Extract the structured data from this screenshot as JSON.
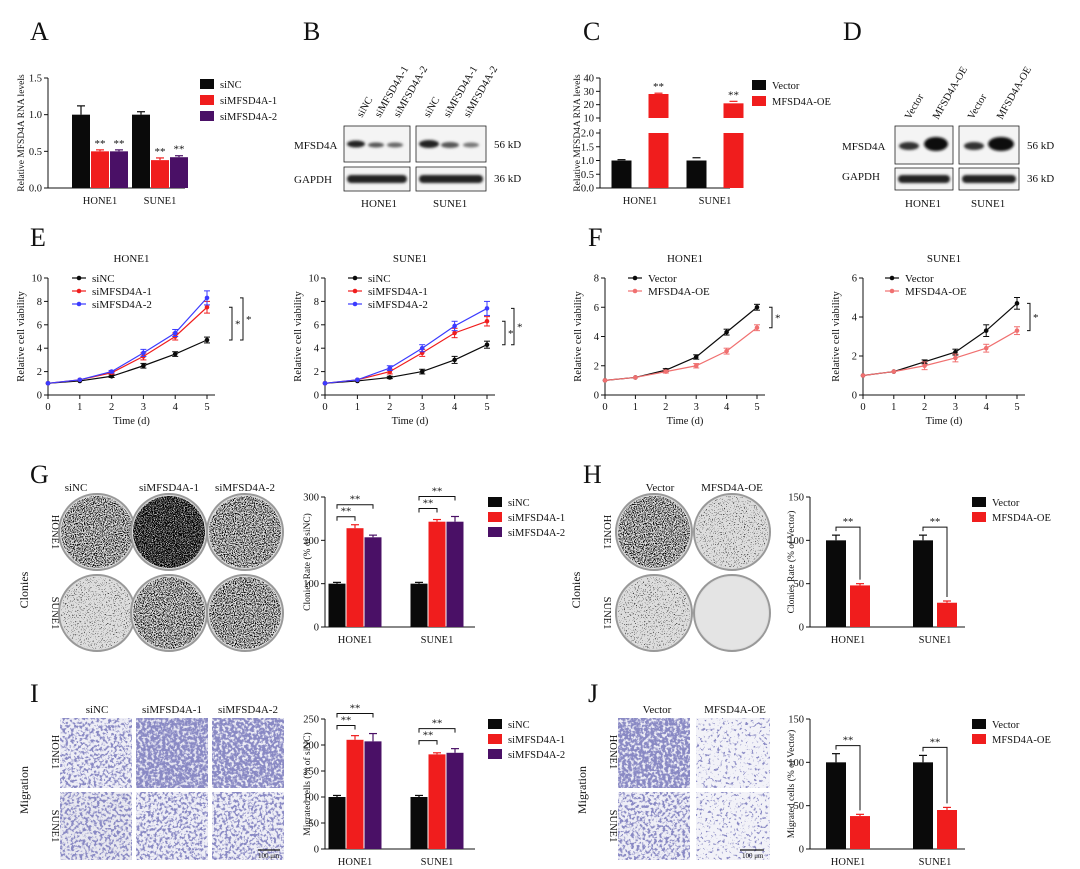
{
  "colors": {
    "black": "#0a0a0a",
    "red": "#f01d1d",
    "purple": "#4a1066",
    "blue": "#3b3bff",
    "pink": "#f07070"
  },
  "panel_letters": [
    "A",
    "B",
    "C",
    "D",
    "E",
    "F",
    "G",
    "H",
    "I",
    "J"
  ],
  "wb": {
    "B": {
      "lanes": [
        "siNC",
        "siMFSD4A-1",
        "siMFSD4A-2",
        "siNC",
        "siMFSD4A-1",
        "siMFSD4A-2"
      ],
      "proteins": [
        "MFSD4A",
        "GAPDH"
      ],
      "kd": [
        "56 kD",
        "36 kD"
      ],
      "cells": [
        "HONE1",
        "SUNE1"
      ]
    },
    "D": {
      "lanes": [
        "Vector",
        "MFSD4A-OE",
        "Vector",
        "MFSD4A-OE"
      ],
      "proteins": [
        "MFSD4A",
        "GAPDH"
      ],
      "kd": [
        "56 kD",
        "36 kD"
      ],
      "cells": [
        "HONE1",
        "SUNE1"
      ]
    }
  },
  "images": {
    "G": {
      "cols": [
        "siNC",
        "siMFSD4A-1",
        "siMFSD4A-2"
      ],
      "rows": [
        "HONE1",
        "SUNE1"
      ],
      "side": "Clonies"
    },
    "H": {
      "cols": [
        "Vector",
        "MFSD4A-OE"
      ],
      "rows": [
        "HONE1",
        "SUNE1"
      ],
      "side": "Clonies"
    },
    "I": {
      "cols": [
        "siNC",
        "siMFSD4A-1",
        "siMFSD4A-2"
      ],
      "rows": [
        "HONE1",
        "SUNE1"
      ],
      "side": "Migration",
      "scale": "100 μm"
    },
    "J": {
      "cols": [
        "Vector",
        "MFSD4A-OE"
      ],
      "rows": [
        "HONE1",
        "SUNE1"
      ],
      "side": "Migration",
      "scale": "100 μm"
    }
  },
  "chart_data": [
    {
      "id": "A",
      "type": "bar",
      "categories": [
        "HONE1",
        "SUNE1"
      ],
      "ylabel": "Relative MFSD4A RNA levels",
      "ylim": [
        0,
        1.5
      ],
      "yticks": [
        "0.0",
        "0.5",
        "1.0",
        "1.5"
      ],
      "series": [
        {
          "name": "siNC",
          "values": [
            1.0,
            1.0
          ],
          "err": [
            0.12,
            0.04
          ]
        },
        {
          "name": "siMFSD4A-1",
          "values": [
            0.5,
            0.38
          ],
          "err": [
            0.02,
            0.03
          ]
        },
        {
          "name": "siMFSD4A-2",
          "values": [
            0.5,
            0.42
          ],
          "err": [
            0.02,
            0.02
          ]
        }
      ],
      "annotations": [
        "**",
        "**",
        "**",
        "**"
      ]
    },
    {
      "id": "C",
      "type": "bar",
      "categories": [
        "HONE1",
        "SUNE1"
      ],
      "ylabel": "Relative MFSD4A RNA levels",
      "axis_break": true,
      "yticks_low": [
        "0.0",
        "0.5",
        "1.0",
        "1.5",
        "2.0"
      ],
      "yticks_high": [
        "10",
        "20",
        "30",
        "40"
      ],
      "series": [
        {
          "name": "Vector",
          "values": [
            1.0,
            1.0
          ],
          "err": [
            0.03,
            0.1
          ]
        },
        {
          "name": "MFSD4A-OE",
          "values": [
            28,
            21
          ],
          "err": [
            0.6,
            1.5
          ]
        }
      ],
      "annotations": [
        "**",
        "**"
      ]
    },
    {
      "id": "E1",
      "type": "line",
      "title": "HONE1",
      "xlabel": "Time (d)",
      "ylabel": "Relative cell viability",
      "x": [
        0,
        1,
        2,
        3,
        4,
        5
      ],
      "ylim": [
        0,
        10
      ],
      "yticks": [
        "0",
        "2",
        "4",
        "6",
        "8",
        "10"
      ],
      "series": [
        {
          "name": "siNC",
          "values": [
            1.0,
            1.2,
            1.6,
            2.5,
            3.5,
            4.7
          ],
          "err": [
            0,
            0,
            0.1,
            0.2,
            0.2,
            0.25
          ]
        },
        {
          "name": "siMFSD4A-1",
          "values": [
            1.0,
            1.3,
            1.9,
            3.3,
            5.0,
            7.5
          ],
          "err": [
            0,
            0,
            0.1,
            0.3,
            0.3,
            0.5
          ]
        },
        {
          "name": "siMFSD4A-2",
          "values": [
            1.0,
            1.3,
            2.0,
            3.6,
            5.3,
            8.3
          ],
          "err": [
            0,
            0,
            0.1,
            0.3,
            0.3,
            0.6
          ]
        }
      ],
      "annotations": [
        "*",
        "*"
      ]
    },
    {
      "id": "E2",
      "type": "line",
      "title": "SUNE1",
      "xlabel": "Time (d)",
      "ylabel": "Relative cell viability",
      "x": [
        0,
        1,
        2,
        3,
        4,
        5
      ],
      "ylim": [
        0,
        10
      ],
      "yticks": [
        "0",
        "2",
        "4",
        "6",
        "8",
        "10"
      ],
      "series": [
        {
          "name": "siNC",
          "values": [
            1.0,
            1.2,
            1.5,
            2.0,
            3.0,
            4.3
          ],
          "err": [
            0,
            0,
            0.1,
            0.2,
            0.3,
            0.3
          ]
        },
        {
          "name": "siMFSD4A-1",
          "values": [
            1.0,
            1.3,
            2.0,
            3.6,
            5.3,
            6.3
          ],
          "err": [
            0,
            0,
            0.2,
            0.3,
            0.4,
            0.4
          ]
        },
        {
          "name": "siMFSD4A-2",
          "values": [
            1.0,
            1.3,
            2.3,
            4.0,
            5.9,
            7.4
          ],
          "err": [
            0,
            0,
            0.2,
            0.3,
            0.4,
            0.6
          ]
        }
      ],
      "annotations": [
        "*",
        "*"
      ]
    },
    {
      "id": "F1",
      "type": "line",
      "title": "HONE1",
      "xlabel": "Time (d)",
      "ylabel": "Relative cell viability",
      "x": [
        0,
        1,
        2,
        3,
        4,
        5
      ],
      "ylim": [
        0,
        8
      ],
      "yticks": [
        "0",
        "2",
        "4",
        "6",
        "8"
      ],
      "series": [
        {
          "name": "Vector",
          "values": [
            1.0,
            1.2,
            1.7,
            2.6,
            4.3,
            6.0
          ],
          "err": [
            0,
            0,
            0.1,
            0.15,
            0.2,
            0.2
          ]
        },
        {
          "name": "MFSD4A-OE",
          "values": [
            1.0,
            1.2,
            1.6,
            2.0,
            3.0,
            4.6
          ],
          "err": [
            0,
            0,
            0.1,
            0.15,
            0.2,
            0.2
          ]
        }
      ],
      "annotations": [
        "*"
      ]
    },
    {
      "id": "F2",
      "type": "line",
      "title": "SUNE1",
      "xlabel": "Time (d)",
      "ylabel": "Relative cell viability",
      "x": [
        0,
        1,
        2,
        3,
        4,
        5
      ],
      "ylim": [
        0,
        6
      ],
      "yticks": [
        "0",
        "2",
        "4",
        "6"
      ],
      "series": [
        {
          "name": "Vector",
          "values": [
            1.0,
            1.2,
            1.7,
            2.2,
            3.3,
            4.7
          ],
          "err": [
            0,
            0,
            0.1,
            0.15,
            0.3,
            0.3
          ]
        },
        {
          "name": "MFSD4A-OE",
          "values": [
            1.0,
            1.2,
            1.5,
            1.9,
            2.4,
            3.3
          ],
          "err": [
            0,
            0,
            0.2,
            0.2,
            0.2,
            0.2
          ]
        }
      ],
      "annotations": [
        "*"
      ]
    },
    {
      "id": "G",
      "type": "bar",
      "categories": [
        "HONE1",
        "SUNE1"
      ],
      "ylabel": "Clonies Rate (% of siNC)",
      "ylim": [
        0,
        300
      ],
      "yticks": [
        "0",
        "100",
        "200",
        "300"
      ],
      "series": [
        {
          "name": "siNC",
          "values": [
            100,
            100
          ],
          "err": [
            3,
            3
          ]
        },
        {
          "name": "siMFSD4A-1",
          "values": [
            228,
            243
          ],
          "err": [
            8,
            5
          ]
        },
        {
          "name": "siMFSD4A-2",
          "values": [
            207,
            243
          ],
          "err": [
            5,
            12
          ]
        }
      ],
      "annotations": [
        "**",
        "**",
        "**",
        "**"
      ]
    },
    {
      "id": "H",
      "type": "bar",
      "categories": [
        "HONE1",
        "SUNE1"
      ],
      "ylabel": "Clonies Rate (% of Vector)",
      "ylim": [
        0,
        150
      ],
      "yticks": [
        "0",
        "50",
        "100",
        "150"
      ],
      "series": [
        {
          "name": "Vector",
          "values": [
            100,
            100
          ],
          "err": [
            6,
            6
          ]
        },
        {
          "name": "MFSD4A-OE",
          "values": [
            48,
            28
          ],
          "err": [
            2,
            2
          ]
        }
      ],
      "annotations": [
        "**",
        "**"
      ]
    },
    {
      "id": "I",
      "type": "bar",
      "categories": [
        "HONE1",
        "SUNE1"
      ],
      "ylabel": "Migrated cells (% of siNC)",
      "ylim": [
        0,
        250
      ],
      "yticks": [
        "0",
        "50",
        "100",
        "150",
        "200",
        "250"
      ],
      "series": [
        {
          "name": "siNC",
          "values": [
            100,
            100
          ],
          "err": [
            3,
            3
          ]
        },
        {
          "name": "siMFSD4A-1",
          "values": [
            210,
            182
          ],
          "err": [
            8,
            3
          ]
        },
        {
          "name": "siMFSD4A-2",
          "values": [
            207,
            185
          ],
          "err": [
            15,
            8
          ]
        }
      ],
      "annotations": [
        "**",
        "**",
        "**",
        "**"
      ]
    },
    {
      "id": "J",
      "type": "bar",
      "categories": [
        "HONE1",
        "SUNE1"
      ],
      "ylabel": "Migrated cells (% of Vector)",
      "ylim": [
        0,
        150
      ],
      "yticks": [
        "0",
        "50",
        "100",
        "150"
      ],
      "series": [
        {
          "name": "Vector",
          "values": [
            100,
            100
          ],
          "err": [
            10,
            8
          ]
        },
        {
          "name": "MFSD4A-OE",
          "values": [
            38,
            45
          ],
          "err": [
            2,
            3
          ]
        }
      ],
      "annotations": [
        "**",
        "**"
      ]
    }
  ]
}
